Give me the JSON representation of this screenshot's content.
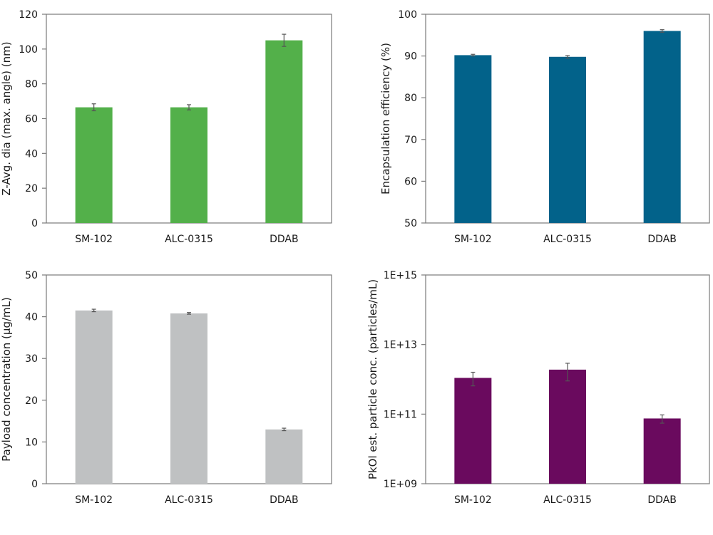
{
  "chart_data": [
    {
      "type": "bar",
      "title": "",
      "xlabel": "",
      "ylabel": "Z-Avg. dia (max. angle) (nm)",
      "categories": [
        "SM-102",
        "ALC-0315",
        "DDAB"
      ],
      "values": [
        66.5,
        66.5,
        105
      ],
      "errors": [
        2,
        1.5,
        3.5
      ],
      "ylim": [
        0,
        120
      ],
      "yticks": [
        0,
        20,
        40,
        60,
        80,
        100,
        120
      ],
      "ytick_labels": [
        "0",
        "20",
        "40",
        "60",
        "80",
        "100",
        "120"
      ],
      "scale": "linear",
      "color": "#53b04a",
      "grid": false
    },
    {
      "type": "bar",
      "title": "",
      "xlabel": "",
      "ylabel": "Encapsulation efficiency (%)",
      "categories": [
        "SM-102",
        "ALC-0315",
        "DDAB"
      ],
      "values": [
        90.2,
        89.8,
        96
      ],
      "errors": [
        0.2,
        0.3,
        0.3
      ],
      "ylim": [
        50,
        100
      ],
      "yticks": [
        50,
        60,
        70,
        80,
        90,
        100
      ],
      "ytick_labels": [
        "50",
        "60",
        "70",
        "80",
        "90",
        "100"
      ],
      "scale": "linear",
      "color": "#02628a",
      "grid": false
    },
    {
      "type": "bar",
      "title": "",
      "xlabel": "",
      "ylabel": "Payload concentration  (µg/mL)",
      "categories": [
        "SM-102",
        "ALC-0315",
        "DDAB"
      ],
      "values": [
        41.5,
        40.8,
        13
      ],
      "errors": [
        0.3,
        0.2,
        0.3
      ],
      "ylim": [
        0,
        50
      ],
      "yticks": [
        0,
        10,
        20,
        30,
        40,
        50
      ],
      "ytick_labels": [
        "0",
        "10",
        "20",
        "30",
        "40",
        "50"
      ],
      "scale": "linear",
      "color": "#bfc1c2",
      "grid": false
    },
    {
      "type": "bar",
      "title": "",
      "xlabel": "",
      "ylabel": "PkOl est. particle conc. (particles/mL)",
      "categories": [
        "SM-102",
        "ALC-0315",
        "DDAB"
      ],
      "values": [
        1100000000000.0,
        1900000000000.0,
        75000000000.0
      ],
      "errors_low": [
        650000000000.0,
        900000000000.0,
        55000000000.0
      ],
      "errors_high": [
        1600000000000.0,
        2900000000000.0,
        95000000000.0
      ],
      "ylim": [
        1000000000.0,
        1000000000000000.0
      ],
      "yticks": [
        1000000000.0,
        100000000000.0,
        10000000000000.0,
        1000000000000000.0
      ],
      "ytick_labels": [
        "1E+09",
        "1E+11",
        "1E+13",
        "1E+15"
      ],
      "scale": "log",
      "color": "#6a0a5e",
      "grid": false
    }
  ]
}
